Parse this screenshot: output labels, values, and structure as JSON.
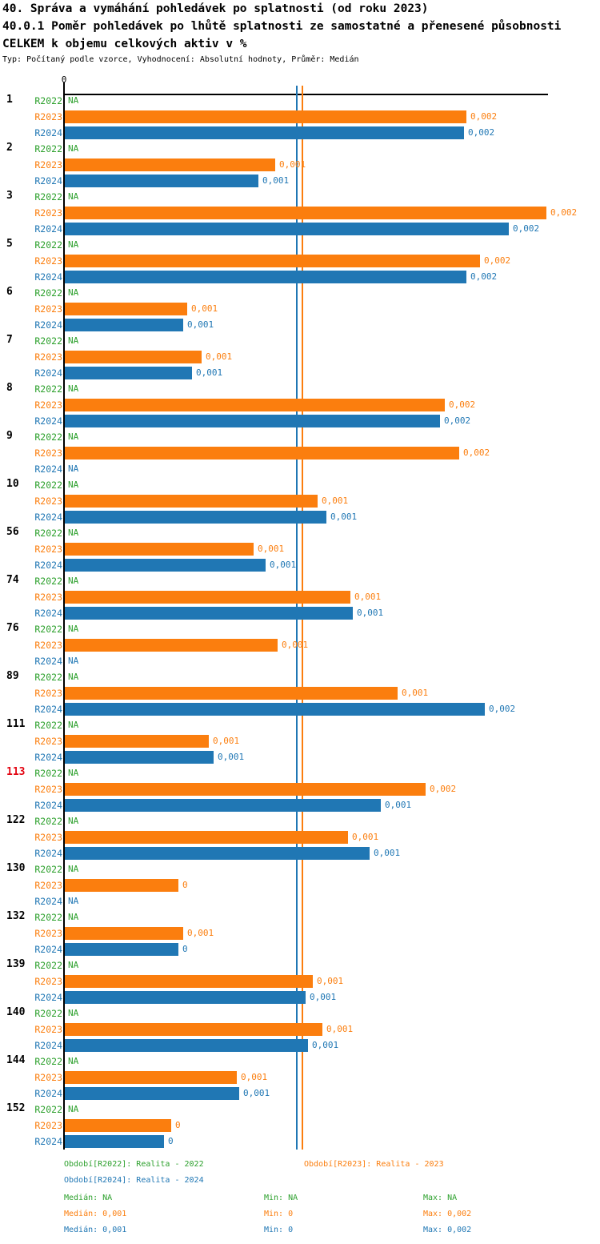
{
  "header": {
    "title": "40. Správa a vymáhání pohledávek po splatnosti (od roku 2023)",
    "subtitle_line1": "40.0.1 Poměr pohledávek po lhůtě splatnosti ze samostatné a přenesené působnosti",
    "subtitle_line2": "CELKEM k objemu celkových aktiv v %",
    "meta": "Typ: Počítaný podle vzorce, Vyhodnocení: Absolutní hodnoty, Průměr: Medián"
  },
  "colors": {
    "green": "#2ca02c",
    "orange": "#fb7e0e",
    "blue": "#2077b4",
    "red": "#e30613",
    "axis": "#000000"
  },
  "chart_data": {
    "type": "bar",
    "orientation": "horizontal",
    "unit": "%",
    "title": "40.0.1 Poměr pohledávek po lhůtě splatnosti ze samostatné a přenesené působnosti CELKEM k objemu celkových aktiv v %",
    "x_axis": {
      "tick_label": "0",
      "min": 0,
      "max": 0.00205,
      "grid": false
    },
    "na_text": "NA",
    "series": [
      {
        "key": "r2022",
        "name": "R2022",
        "color": "green"
      },
      {
        "key": "r2023",
        "name": "R2023",
        "color": "orange"
      },
      {
        "key": "r2024",
        "name": "R2024",
        "color": "blue"
      }
    ],
    "groups": [
      {
        "id": "1",
        "highlight": false,
        "bars": {
          "r2022": {
            "value": null,
            "label": "NA"
          },
          "r2023": {
            "value": 0.0017,
            "label": "0,002"
          },
          "r2024": {
            "value": 0.00169,
            "label": "0,002"
          }
        }
      },
      {
        "id": "2",
        "highlight": false,
        "bars": {
          "r2022": {
            "value": null,
            "label": "NA"
          },
          "r2023": {
            "value": 0.00089,
            "label": "0,001"
          },
          "r2024": {
            "value": 0.00082,
            "label": "0,001"
          }
        }
      },
      {
        "id": "3",
        "highlight": false,
        "bars": {
          "r2022": {
            "value": null,
            "label": "NA"
          },
          "r2023": {
            "value": 0.00204,
            "label": "0,002"
          },
          "r2024": {
            "value": 0.00188,
            "label": "0,002"
          }
        }
      },
      {
        "id": "5",
        "highlight": false,
        "bars": {
          "r2022": {
            "value": null,
            "label": "NA"
          },
          "r2023": {
            "value": 0.00176,
            "label": "0,002"
          },
          "r2024": {
            "value": 0.0017,
            "label": "0,002"
          }
        }
      },
      {
        "id": "6",
        "highlight": false,
        "bars": {
          "r2022": {
            "value": null,
            "label": "NA"
          },
          "r2023": {
            "value": 0.00052,
            "label": "0,001"
          },
          "r2024": {
            "value": 0.0005,
            "label": "0,001"
          }
        }
      },
      {
        "id": "7",
        "highlight": false,
        "bars": {
          "r2022": {
            "value": null,
            "label": "NA"
          },
          "r2023": {
            "value": 0.00058,
            "label": "0,001"
          },
          "r2024": {
            "value": 0.00054,
            "label": "0,001"
          }
        }
      },
      {
        "id": "8",
        "highlight": false,
        "bars": {
          "r2022": {
            "value": null,
            "label": "NA"
          },
          "r2023": {
            "value": 0.00161,
            "label": "0,002"
          },
          "r2024": {
            "value": 0.00159,
            "label": "0,002"
          }
        }
      },
      {
        "id": "9",
        "highlight": false,
        "bars": {
          "r2022": {
            "value": null,
            "label": "NA"
          },
          "r2023": {
            "value": 0.00167,
            "label": "0,002"
          },
          "r2024": {
            "value": null,
            "label": "NA"
          }
        }
      },
      {
        "id": "10",
        "highlight": false,
        "bars": {
          "r2022": {
            "value": null,
            "label": "NA"
          },
          "r2023": {
            "value": 0.00107,
            "label": "0,001"
          },
          "r2024": {
            "value": 0.00111,
            "label": "0,001"
          }
        }
      },
      {
        "id": "56",
        "highlight": false,
        "bars": {
          "r2022": {
            "value": null,
            "label": "NA"
          },
          "r2023": {
            "value": 0.0008,
            "label": "0,001"
          },
          "r2024": {
            "value": 0.00085,
            "label": "0,001"
          }
        }
      },
      {
        "id": "74",
        "highlight": false,
        "bars": {
          "r2022": {
            "value": null,
            "label": "NA"
          },
          "r2023": {
            "value": 0.00121,
            "label": "0,001"
          },
          "r2024": {
            "value": 0.00122,
            "label": "0,001"
          }
        }
      },
      {
        "id": "76",
        "highlight": false,
        "bars": {
          "r2022": {
            "value": null,
            "label": "NA"
          },
          "r2023": {
            "value": 0.0009,
            "label": "0,001"
          },
          "r2024": {
            "value": null,
            "label": "NA"
          }
        }
      },
      {
        "id": "89",
        "highlight": false,
        "bars": {
          "r2022": {
            "value": null,
            "label": "NA"
          },
          "r2023": {
            "value": 0.00141,
            "label": "0,001"
          },
          "r2024": {
            "value": 0.00178,
            "label": "0,002"
          }
        }
      },
      {
        "id": "111",
        "highlight": false,
        "bars": {
          "r2022": {
            "value": null,
            "label": "NA"
          },
          "r2023": {
            "value": 0.00061,
            "label": "0,001"
          },
          "r2024": {
            "value": 0.00063,
            "label": "0,001"
          }
        }
      },
      {
        "id": "113",
        "highlight": true,
        "bars": {
          "r2022": {
            "value": null,
            "label": "NA"
          },
          "r2023": {
            "value": 0.00153,
            "label": "0,002"
          },
          "r2024": {
            "value": 0.00134,
            "label": "0,001"
          }
        }
      },
      {
        "id": "122",
        "highlight": false,
        "bars": {
          "r2022": {
            "value": null,
            "label": "NA"
          },
          "r2023": {
            "value": 0.0012,
            "label": "0,001"
          },
          "r2024": {
            "value": 0.00129,
            "label": "0,001"
          }
        }
      },
      {
        "id": "130",
        "highlight": false,
        "bars": {
          "r2022": {
            "value": null,
            "label": "NA"
          },
          "r2023": {
            "value": 0.00048,
            "label": "0"
          },
          "r2024": {
            "value": null,
            "label": "NA"
          }
        }
      },
      {
        "id": "132",
        "highlight": false,
        "bars": {
          "r2022": {
            "value": null,
            "label": "NA"
          },
          "r2023": {
            "value": 0.0005,
            "label": "0,001"
          },
          "r2024": {
            "value": 0.00048,
            "label": "0"
          }
        }
      },
      {
        "id": "139",
        "highlight": false,
        "bars": {
          "r2022": {
            "value": null,
            "label": "NA"
          },
          "r2023": {
            "value": 0.00105,
            "label": "0,001"
          },
          "r2024": {
            "value": 0.00102,
            "label": "0,001"
          }
        }
      },
      {
        "id": "140",
        "highlight": false,
        "bars": {
          "r2022": {
            "value": null,
            "label": "NA"
          },
          "r2023": {
            "value": 0.00109,
            "label": "0,001"
          },
          "r2024": {
            "value": 0.00103,
            "label": "0,001"
          }
        }
      },
      {
        "id": "144",
        "highlight": false,
        "bars": {
          "r2022": {
            "value": null,
            "label": "NA"
          },
          "r2023": {
            "value": 0.00073,
            "label": "0,001"
          },
          "r2024": {
            "value": 0.00074,
            "label": "0,001"
          }
        }
      },
      {
        "id": "152",
        "highlight": false,
        "bars": {
          "r2022": {
            "value": null,
            "label": "NA"
          },
          "r2023": {
            "value": 0.00045,
            "label": "0"
          },
          "r2024": {
            "value": 0.00042,
            "label": "0"
          }
        }
      }
    ],
    "reference_lines": [
      {
        "series": "R2024",
        "stat": "median",
        "value": 0.000985,
        "color": "blue"
      },
      {
        "series": "R2023",
        "stat": "median",
        "value": 0.00101,
        "color": "orange"
      }
    ],
    "legend": {
      "periods": [
        {
          "label": "Období[R2022]: Realita - 2022",
          "color": "green"
        },
        {
          "label": "Období[R2023]: Realita - 2023",
          "color": "orange"
        },
        {
          "label": "Období[R2024]: Realita - 2024",
          "color": "blue"
        }
      ],
      "stats": [
        {
          "series": "R2022",
          "median": "Medián: NA",
          "min": "Min: NA",
          "max": "Max: NA",
          "color": "green"
        },
        {
          "series": "R2023",
          "median": "Medián: 0,001",
          "min": "Min: 0",
          "max": "Max: 0,002",
          "color": "orange"
        },
        {
          "series": "R2024",
          "median": "Medián: 0,001",
          "min": "Min: 0",
          "max": "Max: 0,002",
          "color": "blue"
        }
      ]
    }
  }
}
